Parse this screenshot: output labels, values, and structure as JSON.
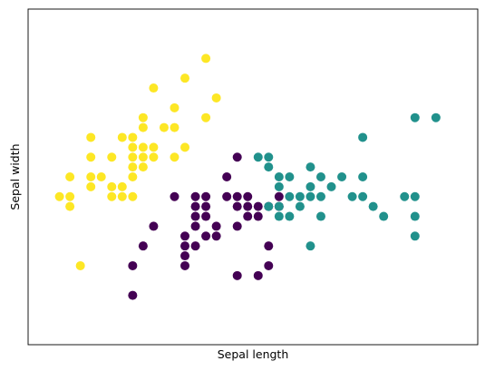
{
  "chart_data": {
    "type": "scatter",
    "xlabel": "Sepal length",
    "ylabel": "Sepal width",
    "xlim": [
      4.0,
      8.3
    ],
    "ylim": [
      1.5,
      4.9
    ],
    "grid": false,
    "ticks_visible": false,
    "series": [
      {
        "color": "#fde725",
        "points": [
          [
            4.3,
            3.0
          ],
          [
            4.4,
            2.9
          ],
          [
            4.4,
            3.0
          ],
          [
            4.4,
            3.2
          ],
          [
            4.5,
            2.3
          ],
          [
            4.6,
            3.1
          ],
          [
            4.6,
            3.2
          ],
          [
            4.6,
            3.4
          ],
          [
            4.6,
            3.6
          ],
          [
            4.7,
            3.2
          ],
          [
            4.8,
            3.0
          ],
          [
            4.8,
            3.1
          ],
          [
            4.8,
            3.4
          ],
          [
            4.9,
            3.0
          ],
          [
            4.9,
            3.1
          ],
          [
            4.9,
            3.6
          ],
          [
            5.0,
            3.0
          ],
          [
            5.0,
            3.2
          ],
          [
            5.0,
            3.3
          ],
          [
            5.0,
            3.4
          ],
          [
            5.0,
            3.5
          ],
          [
            5.0,
            3.6
          ],
          [
            5.1,
            3.3
          ],
          [
            5.1,
            3.4
          ],
          [
            5.1,
            3.5
          ],
          [
            5.1,
            3.7
          ],
          [
            5.1,
            3.8
          ],
          [
            5.2,
            3.4
          ],
          [
            5.2,
            3.5
          ],
          [
            5.2,
            4.1
          ],
          [
            5.3,
            3.7
          ],
          [
            5.4,
            3.4
          ],
          [
            5.4,
            3.7
          ],
          [
            5.4,
            3.9
          ],
          [
            5.5,
            3.5
          ],
          [
            5.5,
            4.2
          ],
          [
            5.7,
            3.8
          ],
          [
            5.7,
            4.4
          ],
          [
            5.8,
            4.0
          ]
        ]
      },
      {
        "color": "#440154",
        "points": [
          [
            5.0,
            2.0
          ],
          [
            5.0,
            2.3
          ],
          [
            5.1,
            2.5
          ],
          [
            5.2,
            2.7
          ],
          [
            5.4,
            3.0
          ],
          [
            5.5,
            2.3
          ],
          [
            5.5,
            2.4
          ],
          [
            5.5,
            2.5
          ],
          [
            5.5,
            2.6
          ],
          [
            5.6,
            2.5
          ],
          [
            5.6,
            2.7
          ],
          [
            5.6,
            2.8
          ],
          [
            5.6,
            2.9
          ],
          [
            5.6,
            3.0
          ],
          [
            5.7,
            2.6
          ],
          [
            5.7,
            2.8
          ],
          [
            5.7,
            2.9
          ],
          [
            5.7,
            3.0
          ],
          [
            5.8,
            2.6
          ],
          [
            5.8,
            2.7
          ],
          [
            5.9,
            3.0
          ],
          [
            5.9,
            3.2
          ],
          [
            6.0,
            2.2
          ],
          [
            6.0,
            2.7
          ],
          [
            6.0,
            2.9
          ],
          [
            6.0,
            3.0
          ],
          [
            6.0,
            3.4
          ],
          [
            6.1,
            2.8
          ],
          [
            6.1,
            2.9
          ],
          [
            6.1,
            3.0
          ],
          [
            6.2,
            2.2
          ],
          [
            6.2,
            2.8
          ],
          [
            6.2,
            2.9
          ],
          [
            6.3,
            2.3
          ],
          [
            6.3,
            2.5
          ],
          [
            6.3,
            2.9
          ],
          [
            6.4,
            2.9
          ],
          [
            6.4,
            3.0
          ]
        ]
      },
      {
        "color": "#21918c",
        "points": [
          [
            6.2,
            3.4
          ],
          [
            6.3,
            2.9
          ],
          [
            6.3,
            3.3
          ],
          [
            6.3,
            3.4
          ],
          [
            6.4,
            2.8
          ],
          [
            6.4,
            2.9
          ],
          [
            6.4,
            3.1
          ],
          [
            6.4,
            3.2
          ],
          [
            6.5,
            2.8
          ],
          [
            6.5,
            3.0
          ],
          [
            6.5,
            3.2
          ],
          [
            6.6,
            2.9
          ],
          [
            6.6,
            3.0
          ],
          [
            6.7,
            2.5
          ],
          [
            6.7,
            3.0
          ],
          [
            6.7,
            3.1
          ],
          [
            6.7,
            3.3
          ],
          [
            6.8,
            2.8
          ],
          [
            6.8,
            3.0
          ],
          [
            6.8,
            3.2
          ],
          [
            6.9,
            3.1
          ],
          [
            7.0,
            3.2
          ],
          [
            7.1,
            3.0
          ],
          [
            7.2,
            3.0
          ],
          [
            7.2,
            3.2
          ],
          [
            7.2,
            3.6
          ],
          [
            7.3,
            2.9
          ],
          [
            7.4,
            2.8
          ],
          [
            7.6,
            3.0
          ],
          [
            7.7,
            2.6
          ],
          [
            7.7,
            2.8
          ],
          [
            7.7,
            3.0
          ],
          [
            7.7,
            3.8
          ],
          [
            7.9,
            3.8
          ]
        ]
      }
    ]
  }
}
